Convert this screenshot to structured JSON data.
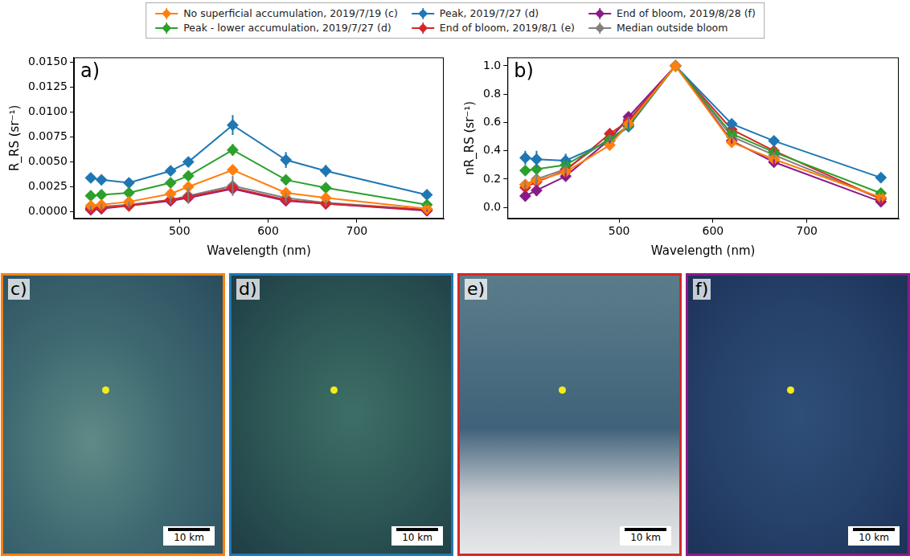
{
  "chart_data": [
    {
      "type": "line",
      "panel_label": "a)",
      "x_label": "Wavelength (nm)",
      "y_label": "R_RS (sr⁻¹)",
      "x": [
        400,
        412,
        443,
        490,
        510,
        560,
        620,
        665,
        779
      ],
      "xlim": [
        381,
        798
      ],
      "xticks": [
        500,
        600,
        700
      ],
      "ylim": [
        -0.0007,
        0.0155
      ],
      "yticks": [
        {
          "value": 0,
          "label": "0.0000"
        },
        {
          "value": 0.0025,
          "label": "0.0025"
        },
        {
          "value": 0.005,
          "label": "0.0050"
        },
        {
          "value": 0.0075,
          "label": "0.0075"
        },
        {
          "value": 0.01,
          "label": "0.0100"
        },
        {
          "value": 0.0125,
          "label": "0.0125"
        },
        {
          "value": 0.015,
          "label": "0.0150"
        }
      ],
      "grid": false,
      "legend": "top",
      "marker": "diamond",
      "line_style": "solid",
      "series": [
        {
          "name": "No superficial accumulation, 2019/7/19 (c)",
          "color": "#ff7f0e",
          "values": [
            0.0006,
            0.0007,
            0.001,
            0.0018,
            0.0025,
            0.0042,
            0.0019,
            0.0014,
            0.0003
          ],
          "errors": [
            0.0001,
            0.0001,
            0.0001,
            0.0002,
            0.0002,
            0.0003,
            0.0002,
            0.0001,
            0.0001
          ]
        },
        {
          "name": "Peak - lower accumulation, 2019/7/27 (d)",
          "color": "#2ca02c",
          "values": [
            0.0016,
            0.0017,
            0.0019,
            0.0029,
            0.0036,
            0.0062,
            0.0032,
            0.0024,
            0.0007
          ],
          "errors": [
            0.0002,
            0.0002,
            0.0002,
            0.0002,
            0.0003,
            0.0006,
            0.0003,
            0.0002,
            0.0001
          ]
        },
        {
          "name": "Peak, 2019/7/27 (d)",
          "color": "#1f77b4",
          "values": [
            0.0034,
            0.0032,
            0.0029,
            0.0041,
            0.005,
            0.0087,
            0.0052,
            0.0041,
            0.0017
          ],
          "errors": [
            0.0002,
            0.0002,
            0.0002,
            0.0003,
            0.0004,
            0.001,
            0.0008,
            0.0006,
            0.0002
          ]
        },
        {
          "name": "End of bloom, 2019/8/1 (e)",
          "color": "#d62728",
          "values": [
            0.0003,
            0.0004,
            0.0006,
            0.0012,
            0.0015,
            0.0024,
            0.0012,
            0.0008,
            0.0002
          ],
          "errors": [
            0.0001,
            0.0001,
            0.0001,
            0.0001,
            0.0002,
            0.0003,
            0.0002,
            0.0001,
            0.0001
          ]
        },
        {
          "name": "End of bloom, 2019/8/28 (f)",
          "color": "#8b1a89",
          "values": [
            0.0002,
            0.0003,
            0.0006,
            0.0011,
            0.0014,
            0.0023,
            0.0011,
            0.0008,
            0.0001
          ],
          "errors": [
            0.0001,
            0.0001,
            0.0001,
            0.0001,
            0.0002,
            0.0003,
            0.0002,
            0.0001,
            0.0001
          ]
        },
        {
          "name": "Median outside bloom",
          "color": "#808080",
          "values": [
            0.0004,
            0.0005,
            0.0007,
            0.0012,
            0.0016,
            0.0026,
            0.0014,
            0.0009,
            0.0002
          ],
          "errors": [
            0.0002,
            0.0003,
            0.0003,
            0.0004,
            0.0008,
            0.001,
            0.0005,
            0.0003,
            0.0001
          ]
        }
      ]
    },
    {
      "type": "line",
      "panel_label": "b)",
      "x_label": "Wavelength (nm)",
      "y_label": "nR_RS (sr⁻¹)",
      "x": [
        400,
        412,
        443,
        490,
        510,
        560,
        620,
        665,
        779
      ],
      "xlim": [
        381,
        798
      ],
      "xticks": [
        500,
        600,
        700
      ],
      "ylim": [
        -0.08,
        1.06
      ],
      "yticks": [
        {
          "value": 0,
          "label": "0.0"
        },
        {
          "value": 0.2,
          "label": "0.2"
        },
        {
          "value": 0.4,
          "label": "0.4"
        },
        {
          "value": 0.6,
          "label": "0.6"
        },
        {
          "value": 0.8,
          "label": "0.8"
        },
        {
          "value": 1,
          "label": "1.0"
        }
      ],
      "grid": false,
      "legend": "top",
      "marker": "diamond",
      "line_style": "solid",
      "series": [
        {
          "name": "No superficial accumulation, 2019/7/19 (c)",
          "color": "#ff7f0e",
          "values": [
            0.16,
            0.19,
            0.25,
            0.44,
            0.59,
            1.0,
            0.46,
            0.34,
            0.07
          ],
          "errors": [
            0.02,
            0.02,
            0.02,
            0.02,
            0.02,
            0.0,
            0.02,
            0.02,
            0.01
          ]
        },
        {
          "name": "Peak - lower accumulation, 2019/7/27 (d)",
          "color": "#2ca02c",
          "values": [
            0.26,
            0.27,
            0.3,
            0.48,
            0.58,
            1.0,
            0.52,
            0.39,
            0.1
          ],
          "errors": [
            0.02,
            0.02,
            0.02,
            0.02,
            0.02,
            0.0,
            0.02,
            0.02,
            0.01
          ]
        },
        {
          "name": "Peak, 2019/7/27 (d)",
          "color": "#1f77b4",
          "values": [
            0.35,
            0.34,
            0.33,
            0.47,
            0.57,
            1.0,
            0.59,
            0.47,
            0.21
          ],
          "errors": [
            0.05,
            0.06,
            0.05,
            0.02,
            0.02,
            0.0,
            0.02,
            0.02,
            0.01
          ]
        },
        {
          "name": "End of bloom, 2019/8/1 (e)",
          "color": "#d62728",
          "values": [
            0.14,
            0.18,
            0.26,
            0.52,
            0.61,
            1.0,
            0.55,
            0.4,
            0.06
          ],
          "errors": [
            0.02,
            0.02,
            0.02,
            0.02,
            0.02,
            0.0,
            0.02,
            0.02,
            0.01
          ]
        },
        {
          "name": "End of bloom, 2019/8/28 (f)",
          "color": "#8b1a89",
          "values": [
            0.08,
            0.12,
            0.22,
            0.48,
            0.64,
            1.0,
            0.47,
            0.32,
            0.04
          ],
          "errors": [
            0.03,
            0.04,
            0.02,
            0.02,
            0.02,
            0.0,
            0.02,
            0.02,
            0.01
          ]
        },
        {
          "name": "Median outside bloom",
          "color": "#808080",
          "values": [
            0.16,
            0.2,
            0.27,
            0.49,
            0.62,
            1.0,
            0.5,
            0.37,
            0.06
          ],
          "errors": [
            0.03,
            0.04,
            0.03,
            0.02,
            0.02,
            0.0,
            0.02,
            0.02,
            0.01
          ]
        }
      ]
    }
  ],
  "images": [
    {
      "label": "c)",
      "color": "#ff7f0e",
      "scale_bar": "10 km"
    },
    {
      "label": "d)",
      "color": "#1f77b4",
      "scale_bar": "10 km"
    },
    {
      "label": "e)",
      "color": "#d62728",
      "scale_bar": "10 km"
    },
    {
      "label": "f)",
      "color": "#8b1a89",
      "scale_bar": "10 km"
    }
  ]
}
